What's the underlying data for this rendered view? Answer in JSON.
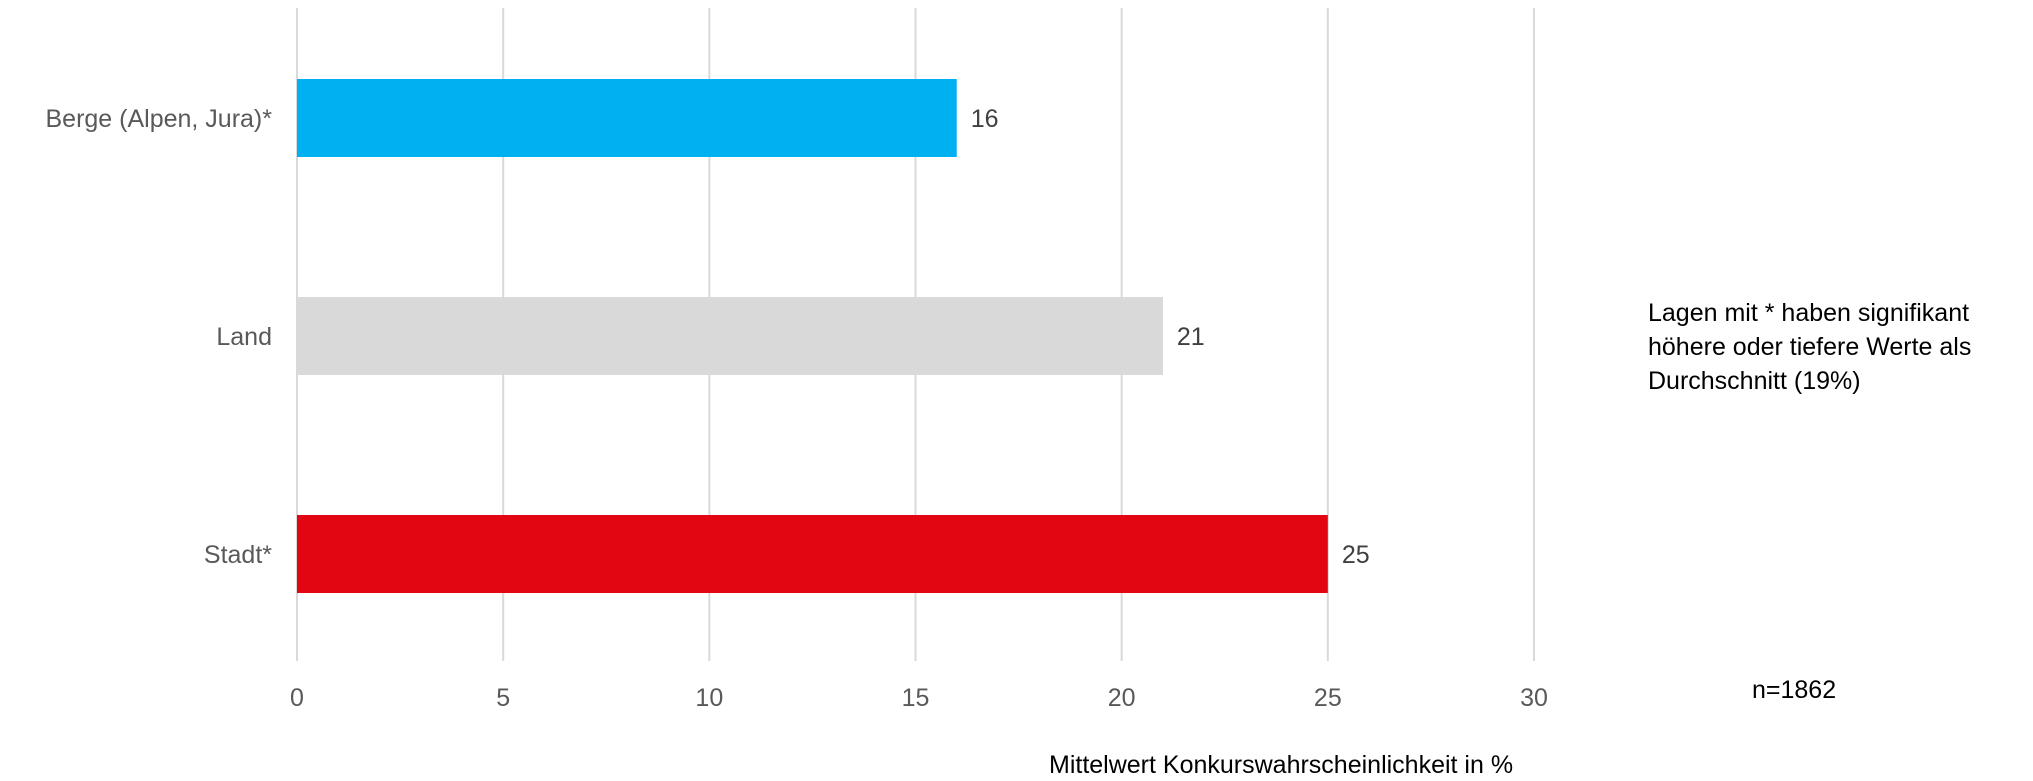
{
  "chart_data": {
    "type": "bar",
    "orientation": "horizontal",
    "categories": [
      "Berge (Alpen, Jura)*",
      "Land",
      "Stadt*"
    ],
    "values": [
      16,
      21,
      25
    ],
    "colors": [
      "#00b0f0",
      "#d9d9d9",
      "#e20613"
    ],
    "data_labels": [
      "16",
      "21",
      "25"
    ],
    "xlabel": "Mittelwert Konkurswahrscheinlichkeit in %",
    "xlim": [
      0,
      30
    ],
    "xticks": [
      0,
      5,
      10,
      15,
      20,
      25,
      30
    ],
    "grid": "vertical",
    "legend": "none"
  },
  "annotations": {
    "note": "Lagen mit * haben signifikant höhere oder tiefere Werte als Durchschnitt (19%)",
    "sample_size": "n=1862"
  }
}
